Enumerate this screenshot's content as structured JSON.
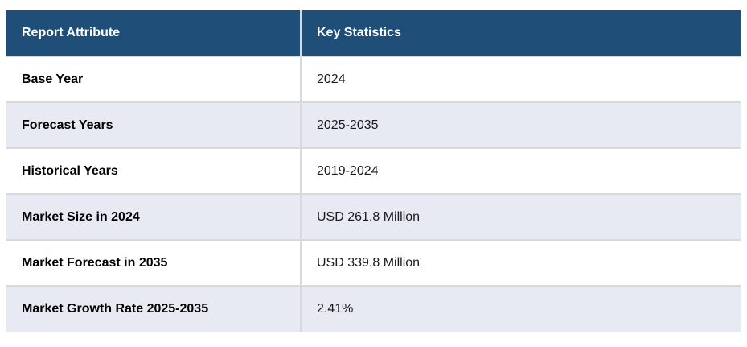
{
  "table": {
    "headers": {
      "attribute": "Report Attribute",
      "statistics": "Key Statistics"
    },
    "rows": [
      {
        "attribute": "Base Year",
        "value": "2024"
      },
      {
        "attribute": "Forecast Years",
        "value": "2025-2035"
      },
      {
        "attribute": "Historical Years",
        "value": "2019-2024"
      },
      {
        "attribute": "Market Size in 2024",
        "value": "USD 261.8 Million"
      },
      {
        "attribute": "Market Forecast in 2035",
        "value": "USD 339.8 Million"
      },
      {
        "attribute": "Market Growth Rate 2025-2035",
        "value": "2.41%"
      }
    ],
    "colors": {
      "header_bg": "#1f4e79",
      "header_text": "#ffffff",
      "row_bg": "#ffffff",
      "row_alt_bg": "#e7e9f3",
      "border": "#d9d9d9",
      "text": "#1a1a1a"
    }
  }
}
